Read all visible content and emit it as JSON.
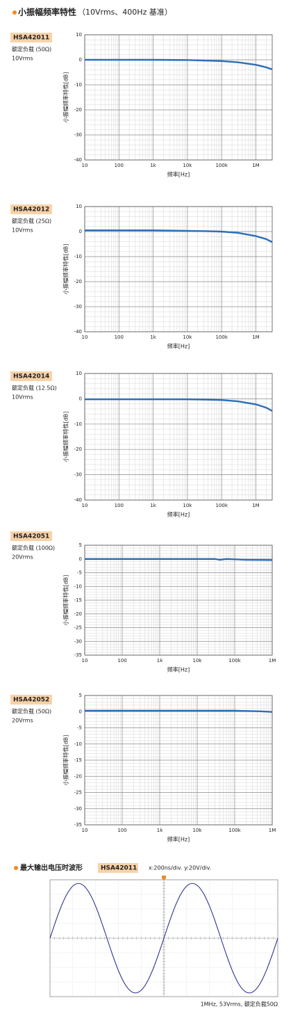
{
  "title": "小振幅频率特性",
  "subtitle": "（10Vrms、400Hz 基准）",
  "chart_data": [
    {
      "type": "line",
      "model": "HSA42011",
      "load": "额定负载 (50Ω)",
      "level": "10Vrms",
      "x_label": "频率[Hz]",
      "y_label": "小振幅频率特性[dB]",
      "log_x": true,
      "grid": true,
      "color": "#2c6eb5",
      "xlim": [
        10,
        3000000
      ],
      "ylim": [
        -40,
        10
      ],
      "xticks": [
        10,
        100,
        {
          "value": 1000,
          "label": "1k"
        },
        {
          "value": 10000,
          "label": "10k"
        },
        {
          "value": 100000,
          "label": "100k"
        },
        {
          "value": 1000000,
          "label": "1M"
        }
      ],
      "yticks": [
        -40,
        -30,
        -20,
        -10,
        0,
        10
      ],
      "x": [
        10,
        100,
        1000,
        10000,
        30000,
        100000,
        300000,
        1000000,
        2000000,
        3000000
      ],
      "values": [
        0,
        0,
        0,
        -0.1,
        -0.3,
        -0.5,
        -1,
        -2,
        -3,
        -3.8
      ]
    },
    {
      "type": "line",
      "model": "HSA42012",
      "load": "额定负载 (25Ω)",
      "level": "10Vrms",
      "x_label": "频率[Hz]",
      "y_label": "小振幅频率特性[dB]",
      "log_x": true,
      "grid": true,
      "color": "#2c6eb5",
      "xlim": [
        10,
        3000000
      ],
      "ylim": [
        -40,
        10
      ],
      "xticks": [
        10,
        100,
        {
          "value": 1000,
          "label": "1k"
        },
        {
          "value": 10000,
          "label": "10k"
        },
        {
          "value": 100000,
          "label": "100k"
        },
        {
          "value": 1000000,
          "label": "1M"
        }
      ],
      "yticks": [
        -40,
        -30,
        -20,
        -10,
        0,
        10
      ],
      "x": [
        10,
        100,
        1000,
        10000,
        30000,
        100000,
        300000,
        1000000,
        2000000,
        3000000
      ],
      "values": [
        0.5,
        0.5,
        0.5,
        0.3,
        0.2,
        0,
        -0.5,
        -1.8,
        -3,
        -4.2
      ]
    },
    {
      "type": "line",
      "model": "HSA42014",
      "load": "额定负载 (12.5Ω)",
      "level": "10Vrms",
      "x_label": "频率[Hz]",
      "y_label": "小振幅频率特性[dB]",
      "log_x": true,
      "grid": true,
      "color": "#2c6eb5",
      "xlim": [
        10,
        3000000
      ],
      "ylim": [
        -40,
        10
      ],
      "xticks": [
        10,
        100,
        {
          "value": 1000,
          "label": "1k"
        },
        {
          "value": 10000,
          "label": "10k"
        },
        {
          "value": 100000,
          "label": "100k"
        },
        {
          "value": 1000000,
          "label": "1M"
        }
      ],
      "yticks": [
        -40,
        -30,
        -20,
        -10,
        0,
        10
      ],
      "x": [
        10,
        100,
        1000,
        10000,
        30000,
        100000,
        300000,
        1000000,
        2000000,
        3000000
      ],
      "values": [
        -0.2,
        -0.2,
        -0.2,
        -0.2,
        -0.3,
        -0.5,
        -1,
        -2.2,
        -3.5,
        -4.8
      ]
    },
    {
      "type": "line",
      "model": "HSA42051",
      "load": "额定负载 (100Ω)",
      "level": "20Vrms",
      "x_label": "频率[Hz]",
      "y_label": "小振幅频率特性[dB]",
      "log_x": true,
      "grid": true,
      "color": "#2c6eb5",
      "xlim": [
        10,
        1000000
      ],
      "ylim": [
        -35,
        5
      ],
      "xticks": [
        10,
        100,
        {
          "value": 1000,
          "label": "1k"
        },
        {
          "value": 10000,
          "label": "10k"
        },
        {
          "value": 100000,
          "label": "100k"
        },
        {
          "value": 1000000,
          "label": "1M"
        }
      ],
      "yticks": [
        -35,
        -30,
        -25,
        -20,
        -15,
        -10,
        -5,
        0,
        5
      ],
      "x": [
        10,
        100,
        1000,
        10000,
        30000,
        40000,
        60000,
        100000,
        200000,
        1000000
      ],
      "values": [
        0,
        0,
        0,
        0,
        0,
        -0.3,
        0,
        -0.1,
        -0.3,
        -0.4
      ]
    },
    {
      "type": "line",
      "model": "HSA42052",
      "load": "额定负载 (50Ω)",
      "level": "20Vrms",
      "x_label": "频率[Hz]",
      "y_label": "小振幅频率特性[dB]",
      "log_x": true,
      "grid": true,
      "color": "#2c6eb5",
      "xlim": [
        10,
        1000000
      ],
      "ylim": [
        -35,
        5
      ],
      "xticks": [
        10,
        100,
        {
          "value": 1000,
          "label": "1k"
        },
        {
          "value": 10000,
          "label": "10k"
        },
        {
          "value": 100000,
          "label": "100k"
        },
        {
          "value": 1000000,
          "label": "1M"
        }
      ],
      "yticks": [
        -35,
        -30,
        -25,
        -20,
        -15,
        -10,
        -5,
        0,
        5
      ],
      "x": [
        10,
        100,
        1000,
        10000,
        100000,
        200000,
        500000,
        1000000
      ],
      "values": [
        0.3,
        0.3,
        0.3,
        0.3,
        0.3,
        0.2,
        0.1,
        -0.1
      ]
    },
    {
      "type": "waveform",
      "title": "最大输出电压时波形",
      "model": "HSA42011",
      "scale": "x:200ns/div. y:20V/div.",
      "caption": "1MHz, 53Vrms, 额定负载50Ω",
      "color": "#2e3192",
      "xlim": [
        0,
        2000
      ],
      "ylim": [
        -80,
        80
      ],
      "x": [
        0,
        50,
        100,
        150,
        200,
        250,
        300,
        350,
        400,
        450,
        500,
        550,
        600,
        650,
        700,
        750,
        800,
        850,
        900,
        950,
        1000,
        1050,
        1100,
        1150,
        1200,
        1250,
        1300,
        1350,
        1400,
        1450,
        1500,
        1550,
        1600,
        1650,
        1700,
        1750,
        1800,
        1850,
        1900,
        1950,
        2000
      ],
      "values": [
        0,
        23.2,
        44.1,
        60.7,
        71.3,
        75,
        71.3,
        60.7,
        44.1,
        23.2,
        0,
        -23.2,
        -44.1,
        -60.7,
        -71.3,
        -75,
        -71.3,
        -60.7,
        -44.1,
        -23.2,
        0,
        23.2,
        44.1,
        60.7,
        71.3,
        75,
        71.3,
        60.7,
        44.1,
        23.2,
        0,
        -23.2,
        -44.1,
        -60.7,
        -71.3,
        -75,
        -71.3,
        -60.7,
        -44.1,
        -23.2,
        0
      ]
    }
  ]
}
